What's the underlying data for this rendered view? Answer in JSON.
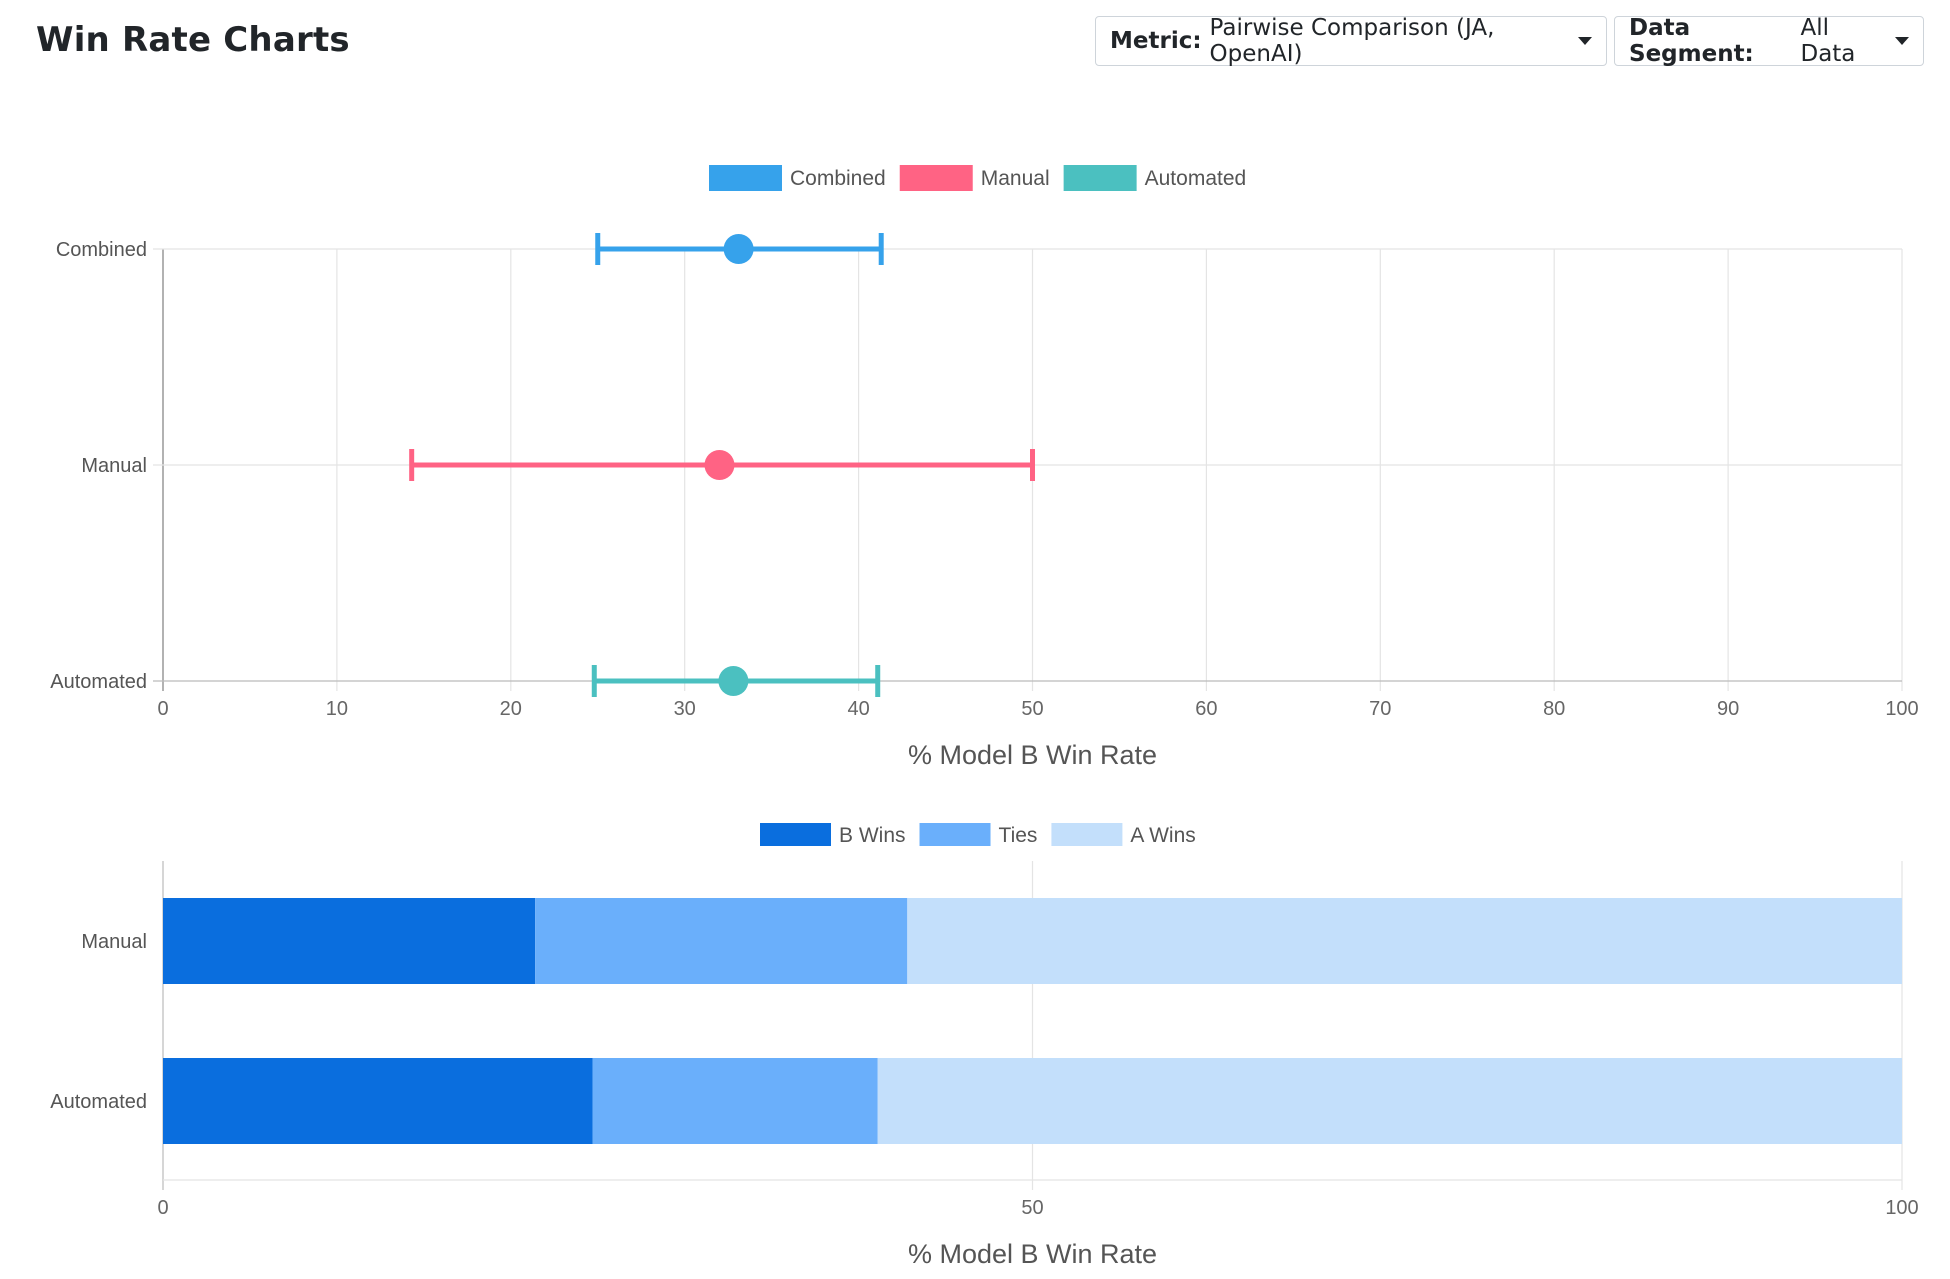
{
  "header": {
    "title": "Win Rate Charts",
    "metric_label": "Metric:",
    "metric_value": "Pairwise Comparison (JA, OpenAI)",
    "segment_label": "Data Segment:",
    "segment_value": "All Data"
  },
  "chart_data": [
    {
      "type": "scatter",
      "title": "",
      "xlabel": "% Model B Win Rate",
      "ylabel": "",
      "xlim": [
        0,
        100
      ],
      "xticks": [
        "0",
        "10",
        "20",
        "30",
        "40",
        "50",
        "60",
        "70",
        "80",
        "90",
        "100"
      ],
      "categories": [
        "Combined",
        "Manual",
        "Automated"
      ],
      "grid": true,
      "legend_position": "top-center",
      "series": [
        {
          "name": "Combined",
          "color": "#36A2EB",
          "value": 33.1,
          "lower": 25.0,
          "upper": 41.3
        },
        {
          "name": "Manual",
          "color": "#FF6384",
          "value": 32.0,
          "lower": 14.3,
          "upper": 50.0
        },
        {
          "name": "Automated",
          "color": "#4BC0C0",
          "value": 32.8,
          "lower": 24.8,
          "upper": 41.1
        }
      ]
    },
    {
      "type": "bar",
      "orientation": "horizontal",
      "stacked": true,
      "title": "",
      "xlabel": "% Model B Win Rate",
      "ylabel": "",
      "xlim": [
        0,
        100
      ],
      "xticks": [
        "0",
        "50",
        "100"
      ],
      "categories": [
        "Manual",
        "Automated"
      ],
      "grid": true,
      "legend_position": "top-center",
      "series": [
        {
          "name": "B Wins",
          "color": "#0A6EDE",
          "values": [
            21.4,
            24.7
          ]
        },
        {
          "name": "Ties",
          "color": "#6AAFFB",
          "values": [
            21.4,
            16.4
          ]
        },
        {
          "name": "A Wins",
          "color": "#C3DFFB",
          "values": [
            57.2,
            58.9
          ]
        }
      ]
    }
  ]
}
